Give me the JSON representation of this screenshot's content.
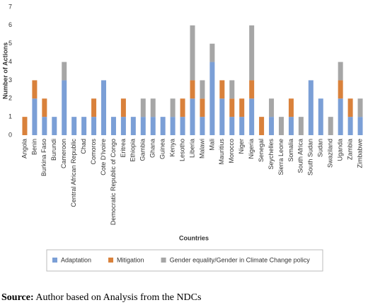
{
  "chart_data": {
    "type": "bar",
    "stacked": true,
    "y_label": "Number of Actions",
    "x_label": "Countries",
    "categories": [
      "Angola",
      "Benin",
      "Burkina Faso",
      "Burundi",
      "Cameroon",
      "Central African Republic",
      "Chad",
      "Comoros",
      "Cote D'Ivoire",
      "Democratic Republic of Congo",
      "Eritrea",
      "Ethiopia",
      "Gambia",
      "Ghana",
      "Guinea",
      "Kenya",
      "Lesotho",
      "Liberia",
      "Malawi",
      "Mali",
      "Mauritius",
      "Morocco",
      "Niger",
      "Nigeria",
      "Senegal",
      "Seychelles",
      "Sierra Leone",
      "Somalia",
      "South Africa",
      "South Sudan",
      "Sudan",
      "Swaziland",
      "Uganda",
      "Zambia",
      "Zimbabwe"
    ],
    "series": [
      {
        "name": "Adaptation",
        "color": "#7b9fd6",
        "values": [
          0,
          2,
          1,
          1,
          3,
          1,
          1,
          1,
          3,
          1,
          1,
          1,
          1,
          1,
          1,
          1,
          1,
          2,
          1,
          4,
          2,
          1,
          1,
          2,
          0,
          1,
          0,
          1,
          0,
          3,
          2,
          0,
          2,
          1,
          1
        ]
      },
      {
        "name": "Mitigation",
        "color": "#d9813b",
        "values": [
          1,
          1,
          1,
          0,
          0,
          0,
          0,
          1,
          0,
          0,
          1,
          0,
          0,
          0,
          0,
          0,
          1,
          1,
          1,
          0,
          1,
          1,
          1,
          1,
          1,
          0,
          0,
          1,
          0,
          0,
          0,
          0,
          1,
          1,
          0
        ]
      },
      {
        "name": "Gender equality/Gender in Climate Change policy",
        "color": "#a6a6a6",
        "values": [
          0,
          0,
          0,
          0,
          1,
          0,
          0,
          0,
          0,
          0,
          0,
          0,
          1,
          1,
          0,
          1,
          0,
          3,
          1,
          1,
          0,
          1,
          0,
          3,
          0,
          1,
          1,
          0,
          1,
          0,
          0,
          1,
          1,
          0,
          1
        ]
      }
    ],
    "ylim": [
      0,
      7
    ],
    "yticks": [
      0,
      1,
      2,
      3,
      4,
      5,
      6,
      7
    ],
    "grid": false,
    "legend": "bottom"
  },
  "source": {
    "label": "Source:",
    "text": "Author based on Analysis from the NDCs"
  }
}
